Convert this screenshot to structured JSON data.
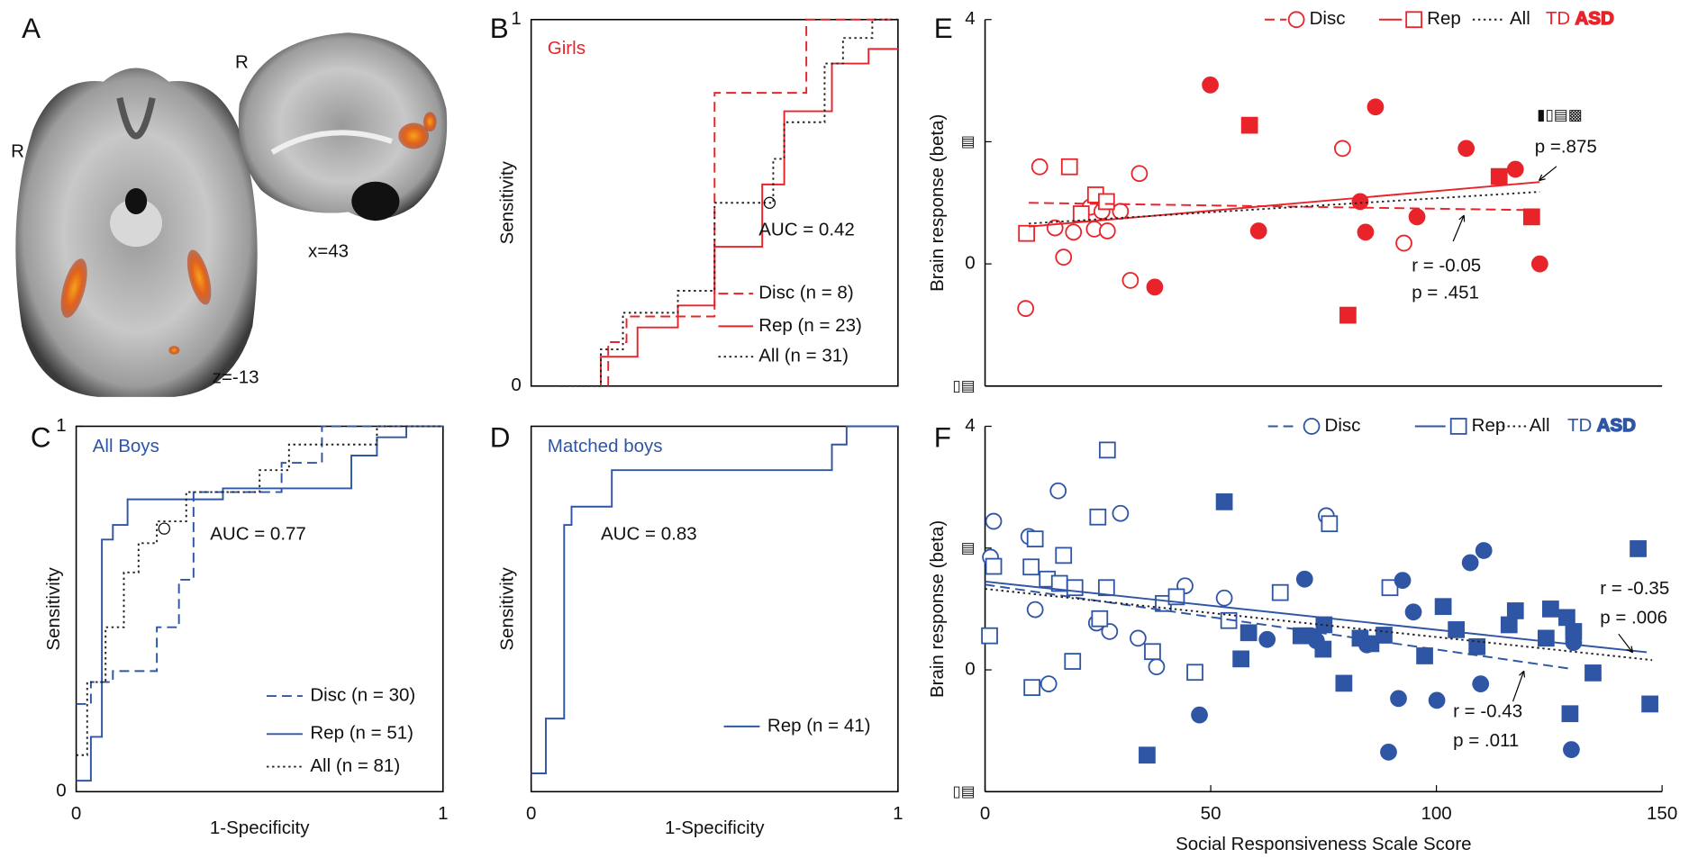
{
  "brain_panel": {
    "panel": "A",
    "axial_side": "R",
    "sagittal_side": "R",
    "sagittal_slice": "x=43",
    "axial_slice": "z=-13"
  },
  "chart_data": [
    {
      "type": "line",
      "panel": "B",
      "title": "Girls",
      "title_color": "#e8242a",
      "ylabel": "Sensitivity",
      "xlim": [
        0,
        1
      ],
      "ylim": [
        0,
        1
      ],
      "yticks": [
        0,
        1
      ],
      "annotation": "AUC = 0.42",
      "operating_point": {
        "x": 0.65,
        "y": 0.5
      },
      "series": [
        {
          "name": "Disc (n = 8)",
          "color": "#e8242a",
          "dash": "dashed",
          "x": [
            0.21,
            0.21,
            0.26,
            0.26,
            0.5,
            0.5,
            0.75,
            0.75,
            1
          ],
          "values": [
            0,
            0.12,
            0.12,
            0.19,
            0.19,
            0.8,
            0.8,
            1,
            1
          ]
        },
        {
          "name": "Rep (n = 23)",
          "color": "#e8242a",
          "dash": "solid",
          "x": [
            0.19,
            0.19,
            0.29,
            0.29,
            0.4,
            0.4,
            0.5,
            0.5,
            0.63,
            0.63,
            0.69,
            0.69,
            0.82,
            0.82,
            0.92,
            0.92,
            1
          ],
          "values": [
            0,
            0.08,
            0.08,
            0.16,
            0.16,
            0.22,
            0.22,
            0.38,
            0.38,
            0.55,
            0.55,
            0.75,
            0.75,
            0.88,
            0.88,
            0.92,
            0.92
          ]
        },
        {
          "name": "All (n = 31)",
          "color": "#222222",
          "dash": "dotted",
          "x": [
            0.08,
            0.19,
            0.19,
            0.25,
            0.25,
            0.4,
            0.4,
            0.5,
            0.5,
            0.66,
            0.66,
            0.69,
            0.69,
            0.8,
            0.8,
            0.85,
            0.85,
            0.93,
            0.93,
            1
          ],
          "values": [
            0,
            0,
            0.1,
            0.1,
            0.2,
            0.2,
            0.26,
            0.26,
            0.5,
            0.5,
            0.62,
            0.62,
            0.72,
            0.72,
            0.88,
            0.88,
            0.95,
            0.95,
            1,
            1
          ]
        }
      ]
    },
    {
      "type": "line",
      "panel": "C",
      "title": "All Boys",
      "title_color": "#2f55a5",
      "ylabel": "Sensitivity",
      "xlabel": "1-Specificity",
      "xlim": [
        0,
        1
      ],
      "ylim": [
        0,
        1
      ],
      "yticks": [
        0,
        1
      ],
      "xticks": [
        0,
        1
      ],
      "annotation": "AUC = 0.77",
      "operating_point": {
        "x": 0.24,
        "y": 0.72
      },
      "series": [
        {
          "name": "Disc (n = 30)",
          "color": "#2f55a5",
          "dash": "dashed",
          "x": [
            0,
            0.04,
            0.04,
            0.1,
            0.1,
            0.22,
            0.22,
            0.28,
            0.28,
            0.32,
            0.32,
            0.56,
            0.56,
            0.67,
            0.67,
            1
          ],
          "values": [
            0.24,
            0.24,
            0.3,
            0.3,
            0.33,
            0.33,
            0.45,
            0.45,
            0.58,
            0.58,
            0.82,
            0.82,
            0.9,
            0.9,
            1,
            1
          ]
        },
        {
          "name": "Rep (n = 51)",
          "color": "#2f55a5",
          "dash": "solid",
          "x": [
            0,
            0.04,
            0.04,
            0.07,
            0.07,
            0.1,
            0.1,
            0.14,
            0.14,
            0.4,
            0.4,
            0.75,
            0.75,
            0.82,
            0.82,
            0.9,
            0.9,
            1
          ],
          "values": [
            0.03,
            0.03,
            0.15,
            0.15,
            0.69,
            0.69,
            0.73,
            0.73,
            0.8,
            0.8,
            0.83,
            0.83,
            0.92,
            0.92,
            0.97,
            0.97,
            1,
            1
          ]
        },
        {
          "name": "All (n = 81)",
          "color": "#222222",
          "dash": "dotted",
          "x": [
            0,
            0.03,
            0.03,
            0.08,
            0.08,
            0.13,
            0.13,
            0.17,
            0.17,
            0.22,
            0.22,
            0.3,
            0.3,
            0.5,
            0.5,
            0.58,
            0.58,
            0.82,
            0.82,
            1
          ],
          "values": [
            0.1,
            0.1,
            0.3,
            0.3,
            0.45,
            0.45,
            0.6,
            0.6,
            0.68,
            0.68,
            0.74,
            0.74,
            0.82,
            0.82,
            0.88,
            0.88,
            0.95,
            0.95,
            1,
            1
          ]
        }
      ]
    },
    {
      "type": "line",
      "panel": "D",
      "title": "Matched boys",
      "title_color": "#2f55a5",
      "ylabel": "Sensitivity",
      "xlabel": "1-Specificity",
      "xlim": [
        0,
        1
      ],
      "ylim": [
        0,
        1
      ],
      "xticks": [
        0,
        1
      ],
      "annotation": "AUC = 0.83",
      "series": [
        {
          "name": "Rep (n = 41)",
          "color": "#2f55a5",
          "dash": "solid",
          "x": [
            0,
            0.04,
            0.04,
            0.09,
            0.09,
            0.11,
            0.11,
            0.22,
            0.22,
            0.82,
            0.82,
            0.86,
            0.86,
            1
          ],
          "values": [
            0.05,
            0.05,
            0.2,
            0.2,
            0.73,
            0.73,
            0.78,
            0.78,
            0.88,
            0.88,
            0.95,
            0.95,
            1,
            1
          ]
        }
      ]
    },
    {
      "type": "scatter",
      "panel": "E",
      "ylabel": "Brain response (beta)",
      "color": "#e8242a",
      "xlim": [
        0,
        150
      ],
      "ylim": [
        -2,
        4
      ],
      "yticks": [
        4,
        {
          "value": 2,
          "label": "▤"
        },
        0,
        {
          "value": -2,
          "label": "▯▤"
        }
      ],
      "groups": [
        "TD",
        "ASD"
      ],
      "annotations": [
        "▮▯▤▩",
        "p =.875",
        "r = -0.05",
        "p = .451"
      ],
      "series": [
        {
          "marker": "circle",
          "filled": false,
          "x": [
            9.0,
            12.1,
            15.5,
            17.4,
            19.6,
            23.3,
            24.2,
            25.9,
            27.1,
            30.0,
            32.2,
            34.2,
            79.2,
            92.8
          ],
          "values": [
            -0.73,
            1.59,
            0.59,
            0.11,
            0.52,
            0.93,
            0.57,
            0.86,
            0.54,
            0.86,
            -0.27,
            1.48,
            1.89,
            0.34
          ]
        },
        {
          "marker": "square",
          "filled": false,
          "x": [
            9.2,
            18.7,
            21.3,
            24.5,
            26.9
          ],
          "values": [
            0.5,
            1.59,
            0.82,
            1.13,
            1.02
          ]
        },
        {
          "marker": "circle",
          "filled": true,
          "x": [
            37.6,
            49.9,
            60.6,
            83.1,
            84.3,
            86.5,
            95.7,
            106.6,
            117.5,
            122.9
          ],
          "values": [
            -0.38,
            2.93,
            0.54,
            1.02,
            0.52,
            2.57,
            0.77,
            1.89,
            1.55,
            0
          ]
        },
        {
          "marker": "square",
          "filled": true,
          "x": [
            58.6,
            80.4,
            113.9,
            121.1
          ],
          "values": [
            2.27,
            -0.84,
            1.43,
            0.77
          ]
        }
      ],
      "fits": [
        {
          "name": "Disc",
          "marker": "circle",
          "dash": "dashed",
          "color": "#e8242a",
          "x": [
            9.7,
            121.2
          ],
          "values": [
            1.0,
            0.88
          ]
        },
        {
          "name": "Rep",
          "marker": "square",
          "dash": "solid",
          "color": "#e8242a",
          "x": [
            9.7,
            122.9
          ],
          "values": [
            0.61,
            1.34
          ]
        },
        {
          "name": "All",
          "dash": "dotted",
          "color": "#222222",
          "x": [
            9.7,
            122.9
          ],
          "values": [
            0.66,
            1.18
          ]
        }
      ]
    },
    {
      "type": "scatter",
      "panel": "F",
      "ylabel": "Brain response (beta)",
      "xlabel": "Social Responsiveness Scale Score",
      "color": "#2f55a5",
      "xlim": [
        0,
        150
      ],
      "ylim": [
        -2,
        4
      ],
      "xticks": [
        0,
        50,
        100,
        150
      ],
      "yticks": [
        4,
        {
          "value": 2,
          "label": "▤"
        },
        0,
        {
          "value": -2,
          "label": "▯▤"
        }
      ],
      "groups": [
        "TD",
        "ASD"
      ],
      "annotations": [
        "r = -0.35",
        "p  = .006",
        "r = -0.43",
        "p = .011"
      ],
      "series": [
        {
          "marker": "circle",
          "filled": false,
          "x": [
            1.9,
            1.2,
            16.2,
            9.7,
            11.1,
            14.1,
            24.7,
            27.6,
            30.0,
            33.9,
            38.0,
            44.3,
            53.0,
            75.6
          ],
          "values": [
            2.44,
            1.85,
            2.94,
            2.19,
            0.99,
            -0.23,
            0.77,
            0.63,
            2.57,
            0.52,
            0.05,
            1.38,
            1.18,
            2.53
          ]
        },
        {
          "marker": "square",
          "filled": false,
          "x": [
            1.0,
            1.9,
            10.2,
            10.4,
            11.1,
            13.8,
            16.5,
            17.4,
            19.4,
            19.9,
            26.9,
            25.0,
            27.1,
            25.4,
            37.1,
            39.5,
            42.4,
            46.5,
            54.0,
            65.4,
            76.3,
            89.7
          ],
          "values": [
            0.56,
            1.7,
            1.69,
            -0.29,
            2.15,
            1.49,
            1.42,
            1.88,
            0.14,
            1.35,
            1.35,
            2.51,
            3.61,
            0.84,
            0.3,
            1.09,
            1.2,
            -0.04,
            0.81,
            1.27,
            2.4,
            1.35
          ]
        },
        {
          "marker": "circle",
          "filled": true,
          "x": [
            47.5,
            62.5,
            70.8,
            72.2,
            73.4,
            84.6,
            89.4,
            91.6,
            92.5,
            94.9,
            100.1,
            107.5,
            109.8,
            110.5,
            130.4,
            129.9
          ],
          "values": [
            -0.74,
            0.5,
            1.49,
            0.56,
            0.48,
            0.41,
            -1.35,
            -0.47,
            1.47,
            0.95,
            -0.5,
            1.76,
            -0.23,
            1.96,
            0.45,
            -1.31
          ]
        },
        {
          "marker": "square",
          "filled": true,
          "x": [
            35.9,
            53.0,
            56.7,
            58.4,
            70.0,
            74.9,
            75.1,
            79.5,
            83.1,
            85.5,
            88.4,
            97.4,
            101.5,
            104.4,
            109.0,
            116.1,
            117.5,
            124.3,
            125.3,
            128.9,
            130.4,
            134.7,
            129.6,
            144.7,
            147.3
          ],
          "values": [
            -1.4,
            2.76,
            0.18,
            0.61,
            0.56,
            0.34,
            0.74,
            -0.22,
            0.52,
            0.43,
            0.57,
            0.23,
            1.04,
            0.66,
            0.38,
            0.74,
            0.97,
            0.52,
            1.0,
            0.86,
            0.63,
            -0.05,
            -0.72,
            1.99,
            -0.56
          ]
        }
      ],
      "fits": [
        {
          "name": "Disc",
          "marker": "circle",
          "dash": "dashed",
          "color": "#2f55a5",
          "x": [
            0,
            129.6
          ],
          "values": [
            1.4,
            0.02
          ]
        },
        {
          "name": "Rep",
          "marker": "square",
          "dash": "solid",
          "color": "#2f55a5",
          "x": [
            0,
            146.6
          ],
          "values": [
            1.45,
            0.29
          ]
        },
        {
          "name": "All",
          "dash": "dotted",
          "color": "#222222",
          "x": [
            0,
            147.8
          ],
          "values": [
            1.33,
            0.16
          ]
        }
      ]
    }
  ]
}
